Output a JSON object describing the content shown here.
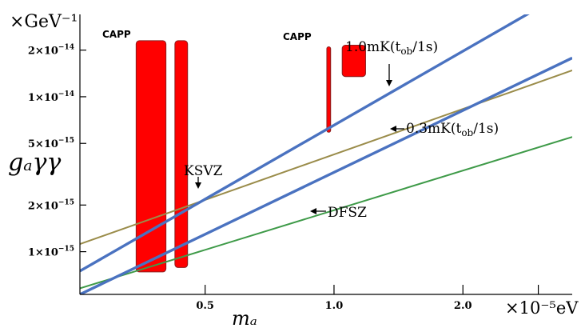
{
  "chart_data": {
    "type": "line",
    "x_unit_label": "×10⁻⁵eV",
    "y_unit_label": "×GeV⁻¹",
    "xlabel": "mₐ",
    "ylabel": "gₐγγ",
    "x_scale": "log",
    "y_scale": "log",
    "xlim": [
      0.255,
      3.6
    ],
    "ylim": [
      5.3e-16,
      3.4e-14
    ],
    "x_ticks": [
      {
        "value": 0.5,
        "label": "0.5"
      },
      {
        "value": 1.0,
        "label": "1.0"
      },
      {
        "value": 2.0,
        "label": "2.0"
      },
      {
        "value": 3.0,
        "label": ""
      }
    ],
    "y_ticks": [
      {
        "value": 1e-15,
        "mant": "1×10",
        "exp": "−15"
      },
      {
        "value": 2e-15,
        "mant": "2×10",
        "exp": "−15"
      },
      {
        "value": 5e-15,
        "mant": "5×10",
        "exp": "−15"
      },
      {
        "value": 1e-14,
        "mant": "1×10",
        "exp": "−14"
      },
      {
        "value": 2e-14,
        "mant": "2×10",
        "exp": "−14"
      }
    ],
    "series": [
      {
        "name": "KSVZ",
        "color": "#9a8c4a",
        "x": [
          0.255,
          3.6
        ],
        "y": [
          1.12e-15,
          1.48e-14
        ]
      },
      {
        "name": "DFSZ",
        "color": "#3e9a48",
        "x": [
          0.255,
          3.6
        ],
        "y": [
          5.8e-16,
          5.5e-15
        ]
      },
      {
        "name": "1.0mK(tob/1s)",
        "color": "#4a72c0",
        "x": [
          0.255,
          3.6
        ],
        "y": [
          7.5e-16,
          5e-14
        ]
      },
      {
        "name": "0.3mK(tob/1s)",
        "color": "#4a72c0",
        "x": [
          0.255,
          3.6
        ],
        "y": [
          5.3e-16,
          1.78e-14
        ]
      }
    ],
    "exclusion_regions": [
      {
        "label": "CAPP",
        "x": [
          0.345,
          0.405
        ],
        "y": [
          7.4e-16,
          2.3e-14
        ]
      },
      {
        "label": "",
        "x": [
          0.425,
          0.455
        ],
        "y": [
          7.9e-16,
          2.3e-14
        ]
      },
      {
        "label": "CAPP",
        "x": [
          0.962,
          0.982
        ],
        "y": [
          5.9e-15,
          2.1e-14
        ]
      },
      {
        "label": "",
        "x": [
          1.045,
          1.185
        ],
        "y": [
          1.35e-14,
          2.15e-14
        ]
      }
    ],
    "annotations": [
      {
        "text": "KSVZ",
        "style": "plain"
      },
      {
        "text": "DFSZ",
        "style": "plain"
      },
      {
        "text": "1.0mK(t",
        "sub": "ob",
        "tail": "/1s)",
        "style": "math"
      },
      {
        "text": "0.3mK(t",
        "sub": "ob",
        "tail": "/1s)",
        "style": "math"
      }
    ]
  }
}
